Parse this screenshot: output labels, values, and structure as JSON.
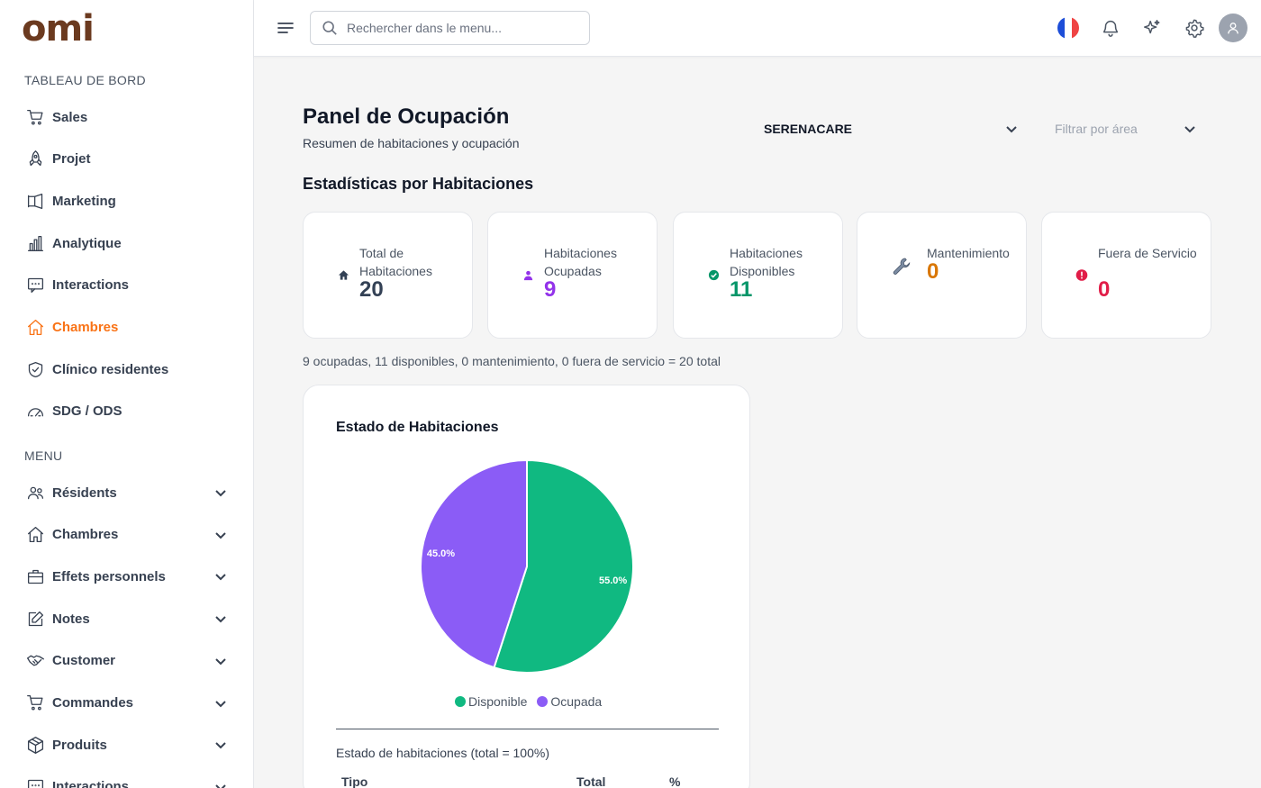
{
  "app": {
    "logo": "omi"
  },
  "sidebar": {
    "dashboard_title": "TABLEAU DE BORD",
    "dashboard_items": [
      {
        "label": "Sales",
        "icon": "cart-icon"
      },
      {
        "label": "Projet",
        "icon": "rocket-icon"
      },
      {
        "label": "Marketing",
        "icon": "megaphone-icon"
      },
      {
        "label": "Analytique",
        "icon": "bar-chart-icon"
      },
      {
        "label": "Interactions",
        "icon": "message-icon"
      },
      {
        "label": "Chambres",
        "icon": "home-icon",
        "active": true
      },
      {
        "label": "Clínico residentes",
        "icon": "shield-check-icon"
      },
      {
        "label": "SDG / ODS",
        "icon": "gauge-icon"
      }
    ],
    "menu_title": "MENU",
    "menu_items": [
      {
        "label": "Résidents",
        "icon": "users-icon"
      },
      {
        "label": "Chambres",
        "icon": "home-icon"
      },
      {
        "label": "Effets personnels",
        "icon": "briefcase-icon"
      },
      {
        "label": "Notes",
        "icon": "edit-note-icon"
      },
      {
        "label": "Customer",
        "icon": "handshake-icon"
      },
      {
        "label": "Commandes",
        "icon": "cart-icon"
      },
      {
        "label": "Produits",
        "icon": "box-icon"
      },
      {
        "label": "Interactions",
        "icon": "message-icon"
      }
    ],
    "accent_color": "#f97316"
  },
  "topbar": {
    "search_placeholder": "Rechercher dans le menu...",
    "language": "fr"
  },
  "header": {
    "title": "Panel de Ocupación",
    "subtitle": "Resumen de habitaciones y ocupación",
    "facility_select": "SERENACARE",
    "area_select_placeholder": "Filtrar por área"
  },
  "stats": {
    "section_title": "Estadísticas por Habitaciones",
    "cards": [
      {
        "label": "Total de Habitaciones",
        "value": "20",
        "color": "#334155",
        "icon": "house-icon"
      },
      {
        "label": "Habitaciones Ocupadas",
        "value": "9",
        "color": "#9333ea",
        "icon": "person-icon"
      },
      {
        "label": "Habitaciones Disponibles",
        "value": "11",
        "color": "#059669",
        "icon": "check-circle-icon"
      },
      {
        "label": "Mantenimiento",
        "value": "0",
        "color": "#d97706",
        "icon": "wrench-icon"
      },
      {
        "label": "Fuera de Servicio",
        "value": "0",
        "color": "#e11d48",
        "icon": "alert-circle-icon"
      }
    ],
    "summary": "9 ocupadas, 11 disponibles, 0 mantenimiento, 0 fuera de servicio = 20 total"
  },
  "chart_section": {
    "title": "Estado de Habitaciones",
    "caption": "Estado de habitaciones (total = 100%)",
    "table_headers": [
      "Tipo",
      "Total",
      "%"
    ]
  },
  "chart_data": {
    "type": "pie",
    "slices": [
      {
        "label": "Disponible",
        "value": 55.0,
        "display": "55.0%",
        "color": "#10b981"
      },
      {
        "label": "Ocupada",
        "value": 45.0,
        "display": "45.0%",
        "color": "#8b5cf6"
      }
    ],
    "legend_position": "bottom"
  }
}
